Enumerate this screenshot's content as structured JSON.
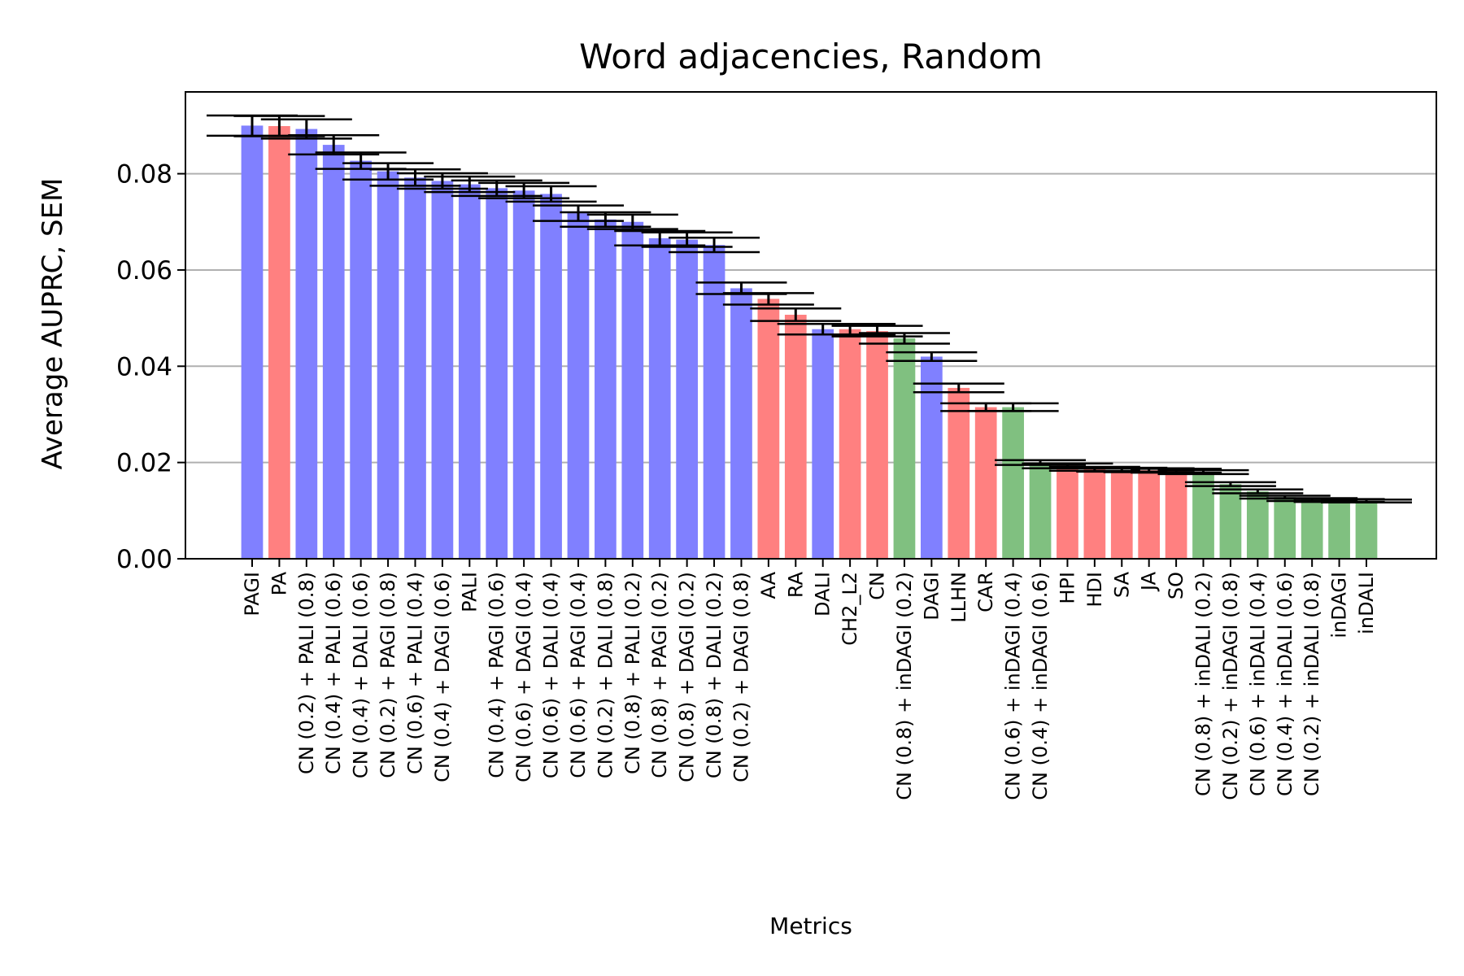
{
  "chart_data": {
    "type": "bar",
    "title": "Word adjacencies, Random",
    "xlabel": "Metrics",
    "ylabel": "Average AUPRC, SEM",
    "ylim": [
      0,
      0.097
    ],
    "yticks": [
      0.0,
      0.02,
      0.04,
      0.06,
      0.08
    ],
    "grid": "y",
    "colors": {
      "blue": "#8080ff",
      "red": "#ff8080",
      "green": "#80c080"
    },
    "bars": [
      {
        "label": "PAGI",
        "value": 0.09,
        "err": 0.0021,
        "color": "blue"
      },
      {
        "label": "PA",
        "value": 0.0899,
        "err": 0.0021,
        "color": "red"
      },
      {
        "label": "CN (0.2) + PALI (0.8)",
        "value": 0.0893,
        "err": 0.002,
        "color": "blue"
      },
      {
        "label": "CN (0.4) + PALI (0.6)",
        "value": 0.086,
        "err": 0.002,
        "color": "blue"
      },
      {
        "label": "CN (0.4) + DALI (0.6)",
        "value": 0.0827,
        "err": 0.0017,
        "color": "blue"
      },
      {
        "label": "CN (0.2) + PAGI (0.8)",
        "value": 0.0805,
        "err": 0.0017,
        "color": "blue"
      },
      {
        "label": "CN (0.6) + PALI (0.4)",
        "value": 0.0792,
        "err": 0.0017,
        "color": "blue"
      },
      {
        "label": "CN (0.4) + DAGI (0.6)",
        "value": 0.0785,
        "err": 0.0016,
        "color": "blue"
      },
      {
        "label": "PALI",
        "value": 0.0778,
        "err": 0.0016,
        "color": "blue"
      },
      {
        "label": "CN (0.4) + PAGI (0.6)",
        "value": 0.077,
        "err": 0.0016,
        "color": "blue"
      },
      {
        "label": "CN (0.6) + DAGI (0.4)",
        "value": 0.0765,
        "err": 0.0016,
        "color": "blue"
      },
      {
        "label": "CN (0.6) + DALI (0.4)",
        "value": 0.0758,
        "err": 0.0016,
        "color": "blue"
      },
      {
        "label": "CN (0.6) + PAGI (0.4)",
        "value": 0.0718,
        "err": 0.0016,
        "color": "blue"
      },
      {
        "label": "CN (0.2) + DALI (0.8)",
        "value": 0.0705,
        "err": 0.0015,
        "color": "blue"
      },
      {
        "label": "CN (0.8) + PALI (0.2)",
        "value": 0.07,
        "err": 0.0015,
        "color": "blue"
      },
      {
        "label": "CN (0.8) + PAGI (0.2)",
        "value": 0.0666,
        "err": 0.0015,
        "color": "blue"
      },
      {
        "label": "CN (0.8) + DAGI (0.2)",
        "value": 0.0663,
        "err": 0.0015,
        "color": "blue"
      },
      {
        "label": "CN (0.8) + DALI (0.2)",
        "value": 0.0652,
        "err": 0.0015,
        "color": "blue"
      },
      {
        "label": "CN (0.2) + DAGI (0.8)",
        "value": 0.0562,
        "err": 0.0012,
        "color": "blue"
      },
      {
        "label": "AA",
        "value": 0.054,
        "err": 0.0012,
        "color": "red"
      },
      {
        "label": "RA",
        "value": 0.0507,
        "err": 0.0013,
        "color": "red"
      },
      {
        "label": "DALI",
        "value": 0.0477,
        "err": 0.0011,
        "color": "blue"
      },
      {
        "label": "CH2_L2",
        "value": 0.0477,
        "err": 0.0011,
        "color": "red"
      },
      {
        "label": "CN",
        "value": 0.0473,
        "err": 0.0011,
        "color": "red"
      },
      {
        "label": "CN (0.8) + inDAGI (0.2)",
        "value": 0.0458,
        "err": 0.0011,
        "color": "green"
      },
      {
        "label": "DAGI",
        "value": 0.042,
        "err": 0.0009,
        "color": "blue"
      },
      {
        "label": "LLHN",
        "value": 0.0355,
        "err": 0.0009,
        "color": "red"
      },
      {
        "label": "CAR",
        "value": 0.0315,
        "err": 0.0008,
        "color": "red"
      },
      {
        "label": "CN (0.6) + inDAGI (0.4)",
        "value": 0.0315,
        "err": 0.0008,
        "color": "green"
      },
      {
        "label": "CN (0.4) + inDAGI (0.6)",
        "value": 0.02,
        "err": 0.0005,
        "color": "green"
      },
      {
        "label": "HPI",
        "value": 0.0193,
        "err": 0.0005,
        "color": "red"
      },
      {
        "label": "HDI",
        "value": 0.0187,
        "err": 0.0004,
        "color": "red"
      },
      {
        "label": "SA",
        "value": 0.0185,
        "err": 0.0004,
        "color": "red"
      },
      {
        "label": "JA",
        "value": 0.0184,
        "err": 0.0004,
        "color": "red"
      },
      {
        "label": "SO",
        "value": 0.0183,
        "err": 0.0004,
        "color": "red"
      },
      {
        "label": "CN (0.8) + inDALI (0.2)",
        "value": 0.018,
        "err": 0.0004,
        "color": "green"
      },
      {
        "label": "CN (0.2) + inDAGI (0.8)",
        "value": 0.0155,
        "err": 0.0004,
        "color": "green"
      },
      {
        "label": "CN (0.6) + inDALI (0.4)",
        "value": 0.014,
        "err": 0.0004,
        "color": "green"
      },
      {
        "label": "CN (0.4) + inDALI (0.6)",
        "value": 0.0128,
        "err": 0.0003,
        "color": "green"
      },
      {
        "label": "CN (0.2) + inDALI (0.8)",
        "value": 0.0123,
        "err": 0.0003,
        "color": "green"
      },
      {
        "label": "inDAGI",
        "value": 0.0121,
        "err": 0.0003,
        "color": "green"
      },
      {
        "label": "inDALI",
        "value": 0.012,
        "err": 0.0003,
        "color": "green"
      }
    ]
  }
}
